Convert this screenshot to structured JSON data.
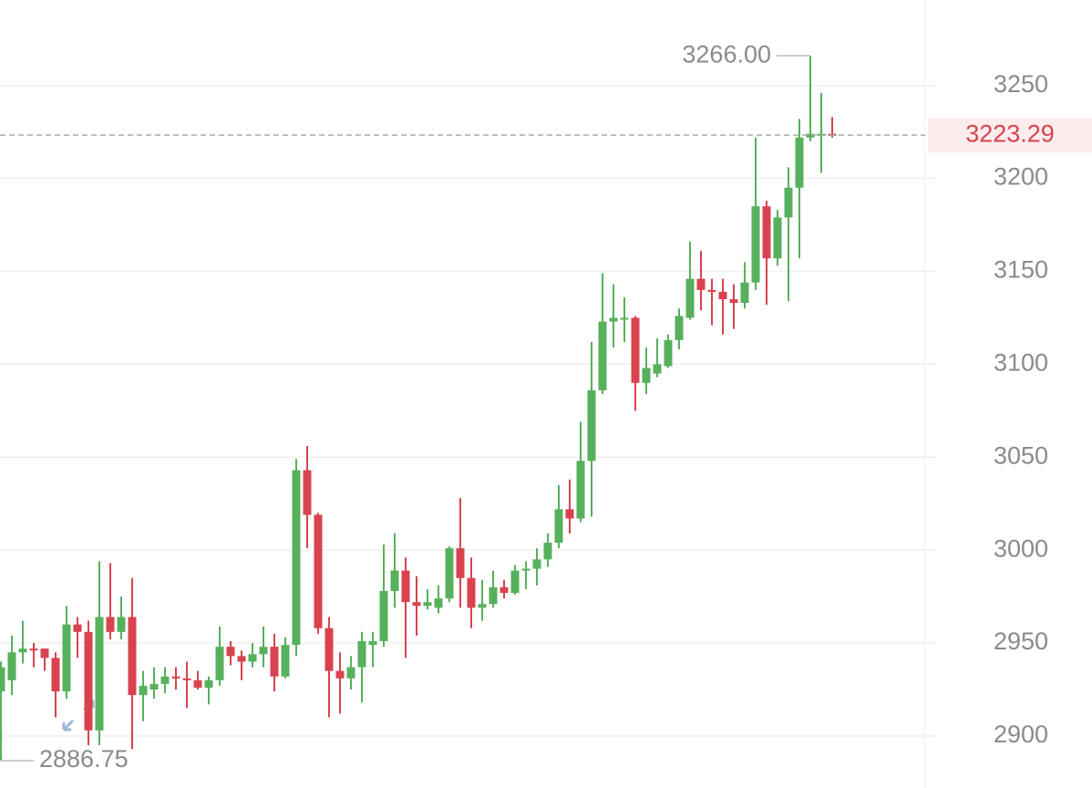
{
  "chart_data": {
    "type": "candlestick",
    "categories": [
      null,
      null,
      null,
      null,
      null,
      null,
      null,
      null,
      null,
      null,
      null,
      null,
      null,
      null,
      null,
      null,
      null,
      null,
      null,
      null,
      null,
      null,
      null,
      null,
      null,
      null,
      null,
      null,
      null,
      null,
      null,
      null,
      null,
      null,
      null,
      null,
      null,
      null,
      null,
      null,
      null,
      null,
      null,
      null,
      null,
      null,
      null,
      null,
      null,
      null,
      null,
      null,
      null,
      null,
      null,
      null,
      null,
      null,
      null,
      null,
      null,
      null,
      null,
      null,
      null,
      null,
      null,
      null,
      null,
      null,
      null,
      null,
      null,
      null,
      null,
      null,
      null
    ],
    "open": [
      2924,
      2930,
      2945,
      2947,
      2947,
      2942,
      2924,
      2960,
      2956,
      2903,
      2964,
      2956,
      2964,
      2922,
      2925,
      2928,
      2932,
      2931,
      2930,
      2926,
      2930,
      2948,
      2943,
      2940,
      2944,
      2948,
      2932,
      2949,
      3043,
      3019,
      2958,
      2935,
      2931,
      2937,
      2949,
      2951,
      2978,
      2989,
      2972,
      2970,
      2969,
      2974,
      3001,
      2985,
      2969,
      2971,
      2980,
      2977,
      2989,
      2990,
      2995,
      3004,
      3022,
      3017,
      3048,
      3086,
      3123,
      3124,
      3125,
      3090,
      3095,
      3099,
      3113,
      3125,
      3146,
      3140,
      3139,
      3135,
      3133,
      3144,
      3185,
      3157,
      3179,
      3195,
      3222,
      3223,
      3224
    ],
    "high": [
      2940,
      2954,
      2962,
      2950,
      2947,
      2945,
      2970,
      2964,
      2962,
      2994,
      2993,
      2975,
      2985,
      2935,
      2937,
      2937,
      2937,
      2940,
      2935,
      2932,
      2959,
      2951,
      2946,
      2950,
      2959,
      2955,
      2953,
      3049,
      3056,
      3020,
      2964,
      2945,
      2943,
      2956,
      2956,
      3003,
      3009,
      2996,
      2986,
      2979,
      2981,
      3002,
      3028,
      2996,
      2984,
      2989,
      2984,
      2992,
      2994,
      3001,
      3009,
      3035,
      3038,
      3069,
      3112,
      3149,
      3143,
      3136,
      3126,
      3109,
      3114,
      3116,
      3130,
      3166,
      3161,
      3146,
      3146,
      3143,
      3155,
      3222,
      3188,
      3183,
      3206,
      3232,
      3266,
      3246,
      3233
    ],
    "low": [
      2886.75,
      2922,
      2939,
      2937,
      2935,
      2910,
      2920,
      2942,
      2895,
      2895,
      2952,
      2952,
      2893,
      2908,
      2920,
      2923,
      2925,
      2915,
      2925,
      2917,
      2927,
      2938,
      2930,
      2937,
      2937,
      2924,
      2931,
      2943,
      3001,
      2955,
      2910,
      2912,
      2925,
      2918,
      2937,
      2948,
      2969,
      2942,
      2954,
      2968,
      2966,
      2972,
      2969,
      2958,
      2962,
      2969,
      2974,
      2976,
      2979,
      2981,
      2991,
      3001,
      3009,
      3015,
      3018,
      3084,
      3109,
      3112,
      3075,
      3084,
      3093,
      3098,
      3108,
      3124,
      3129,
      3121,
      3116,
      3119,
      3130,
      3140,
      3132,
      3153,
      3134,
      3157,
      3220,
      3203,
      3222
    ],
    "close": [
      2937,
      2945,
      2947,
      2946,
      2942,
      2924,
      2960,
      2956,
      2903,
      2964,
      2956,
      2964,
      2922,
      2927,
      2928,
      2932,
      2931,
      2930,
      2926,
      2930,
      2948,
      2943,
      2940,
      2944,
      2948,
      2932,
      2949,
      3043,
      3019,
      2958,
      2935,
      2931,
      2937,
      2951,
      2951,
      2978,
      2989,
      2972,
      2970,
      2972,
      2974,
      3001,
      2985,
      2969,
      2971,
      2980,
      2977,
      2989,
      2990,
      2995,
      3004,
      3022,
      3017,
      3048,
      3086,
      3123,
      3125,
      3125,
      3090,
      3098,
      3100,
      3113,
      3126,
      3146,
      3140,
      3139,
      3135,
      3133,
      3144,
      3185,
      3157,
      3179,
      3195,
      3222,
      3224,
      3224,
      3223.29
    ],
    "up_color": "#57b05c",
    "down_color": "#d8434f",
    "ylim": [
      2872,
      3296
    ],
    "yticks": [
      2900,
      2950,
      3000,
      3050,
      3100,
      3150,
      3200,
      3250
    ],
    "grid": true,
    "last_price": 3223.29,
    "high_marker": {
      "value": 3266,
      "label": "3266.00"
    },
    "low_marker": {
      "value": 2886.75,
      "label": "2886.75"
    }
  }
}
